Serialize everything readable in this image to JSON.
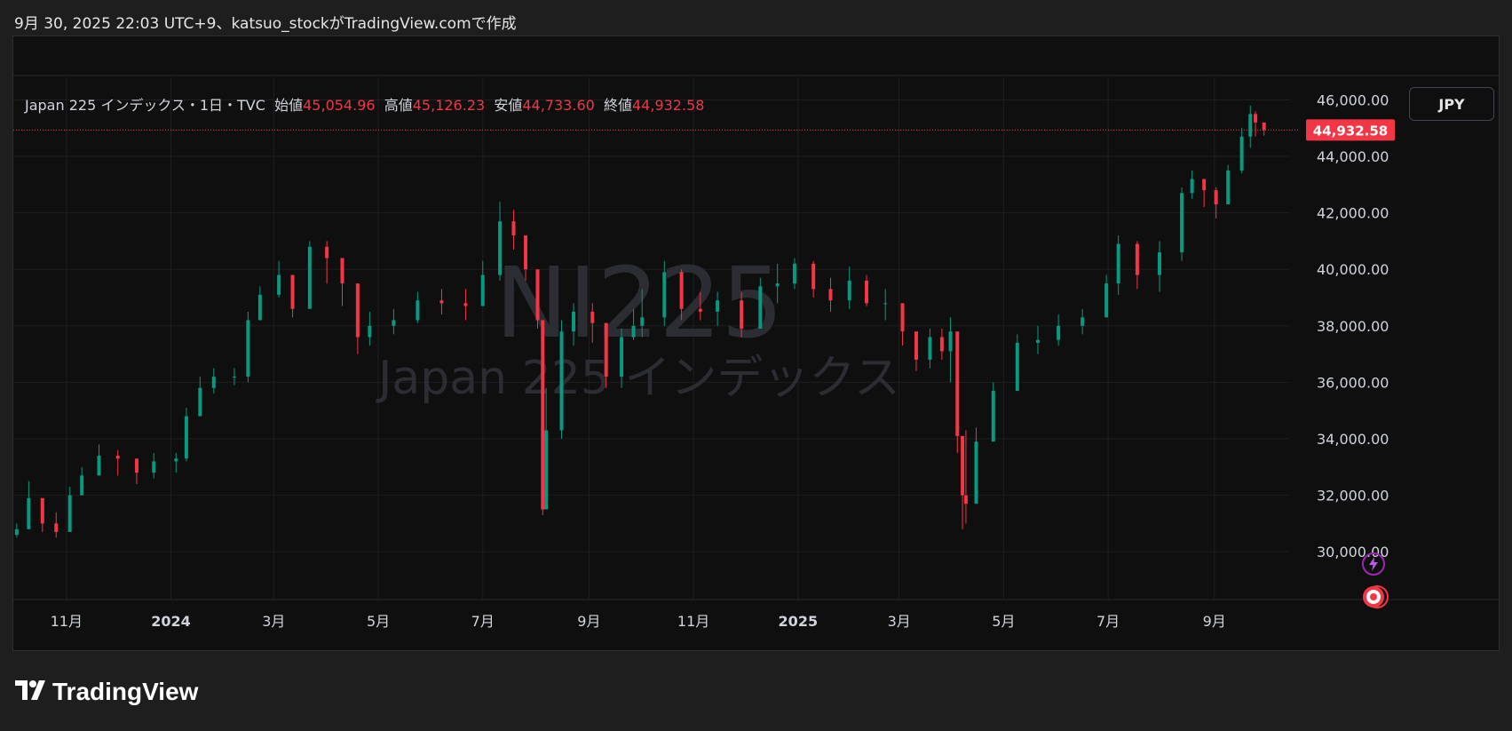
{
  "header": {
    "text": "9月 30, 2025 22:03 UTC+9、katsuo_stockがTradingView.comで作成"
  },
  "legend": {
    "symbol": "Japan 225 インデックス・1日・TVC",
    "open_label": "始値",
    "open_value": "45,054.96",
    "high_label": "高値",
    "high_value": "45,126.23",
    "low_label": "安値",
    "low_value": "44,733.60",
    "close_label": "終値",
    "close_value": "44,932.58"
  },
  "watermark": {
    "symbol": "NI225",
    "name": "Japan 225 インデックス"
  },
  "currency_button": "JPY",
  "last_price_badge": "44,932.58",
  "brand": {
    "logo_text": "TradingView"
  },
  "colors": {
    "up": "#089981",
    "down": "#f23645",
    "background": "#0f0f0f",
    "grid": "#1f1f1f",
    "accent_purple": "#9c27b0"
  },
  "chart_data": {
    "type": "line",
    "chart_style": "candlestick",
    "xlabel": "",
    "ylabel": "",
    "ylim": [
      29000,
      46800
    ],
    "grid": true,
    "y_ticks": [
      "30,000.00",
      "32,000.00",
      "34,000.00",
      "36,000.00",
      "38,000.00",
      "40,000.00",
      "42,000.00",
      "44,000.00",
      "46,000.00"
    ],
    "y_tick_values": [
      30000,
      32000,
      34000,
      36000,
      38000,
      40000,
      42000,
      44000,
      46000
    ],
    "x_ticks": [
      "11月",
      "2024",
      "3月",
      "5月",
      "7月",
      "9月",
      "11月",
      "2025",
      "3月",
      "5月",
      "7月",
      "9月"
    ],
    "x_tick_dates": [
      "2023-11-01",
      "2024-01-01",
      "2024-03-01",
      "2024-05-01",
      "2024-07-01",
      "2024-09-01",
      "2024-11-01",
      "2025-01-01",
      "2025-03-01",
      "2025-05-01",
      "2025-07-01",
      "2025-09-01"
    ],
    "last_price": 44932.58,
    "series": [
      {
        "dates": [
          "2023-10-03",
          "2023-10-10",
          "2023-10-18",
          "2023-10-26",
          "2023-11-03",
          "2023-11-10",
          "2023-11-20",
          "2023-12-01",
          "2023-12-12",
          "2023-12-22",
          "2024-01-04",
          "2024-01-10",
          "2024-01-18",
          "2024-01-26",
          "2024-02-07",
          "2024-02-15",
          "2024-02-22",
          "2024-03-04",
          "2024-03-12",
          "2024-03-22",
          "2024-04-01",
          "2024-04-10",
          "2024-04-19",
          "2024-04-26",
          "2024-05-10",
          "2024-05-24",
          "2024-06-07",
          "2024-06-21",
          "2024-07-01",
          "2024-07-11",
          "2024-07-19",
          "2024-07-26",
          "2024-08-02",
          "2024-08-05",
          "2024-08-07",
          "2024-08-16",
          "2024-08-23",
          "2024-09-03",
          "2024-09-11",
          "2024-09-20",
          "2024-09-27",
          "2024-10-02",
          "2024-10-15",
          "2024-10-25",
          "2024-11-05",
          "2024-11-15",
          "2024-11-29",
          "2024-12-10",
          "2024-12-20",
          "2024-12-30",
          "2025-01-10",
          "2025-01-20",
          "2025-01-31",
          "2025-02-10",
          "2025-02-21",
          "2025-03-03",
          "2025-03-11",
          "2025-03-19",
          "2025-03-26",
          "2025-03-31",
          "2025-04-04",
          "2025-04-07",
          "2025-04-09",
          "2025-04-15",
          "2025-04-25",
          "2025-05-09",
          "2025-05-21",
          "2025-06-02",
          "2025-06-16",
          "2025-06-30",
          "2025-07-07",
          "2025-07-18",
          "2025-07-31",
          "2025-08-13",
          "2025-08-19",
          "2025-08-26",
          "2025-09-02",
          "2025-09-09",
          "2025-09-17",
          "2025-09-22",
          "2025-09-25",
          "2025-09-30"
        ],
        "close": [
          30800,
          31900,
          31000,
          30700,
          32000,
          32700,
          33400,
          33300,
          32800,
          33200,
          33300,
          34800,
          35800,
          36200,
          36200,
          38200,
          39100,
          39800,
          38600,
          40800,
          40400,
          39500,
          37600,
          38000,
          38200,
          38900,
          38800,
          38700,
          39800,
          41700,
          41200,
          40000,
          38200,
          31500,
          34300,
          37800,
          38500,
          38100,
          36200,
          37600,
          38000,
          38300,
          39900,
          38600,
          38500,
          38900,
          37900,
          39400,
          39500,
          40200,
          39300,
          38900,
          39600,
          38800,
          38800,
          37800,
          36800,
          37600,
          37100,
          37800,
          34100,
          32000,
          31700,
          33900,
          35700,
          37400,
          37500,
          38000,
          38300,
          39500,
          40900,
          39800,
          40600,
          42700,
          43200,
          42800,
          42300,
          43500,
          44700,
          45500,
          45200,
          44933
        ],
        "high": [
          31000,
          32500,
          31600,
          31400,
          32300,
          33000,
          33800,
          33600,
          33200,
          33500,
          33500,
          35100,
          36200,
          36500,
          36500,
          38500,
          39400,
          40300,
          39400,
          41000,
          41000,
          40300,
          38300,
          38500,
          38600,
          39200,
          39300,
          39300,
          40300,
          42400,
          42100,
          41000,
          39300,
          36000,
          35800,
          38200,
          38800,
          38800,
          37500,
          37900,
          38600,
          39300,
          40300,
          40000,
          39200,
          39200,
          39200,
          39700,
          40200,
          40400,
          40300,
          39700,
          40100,
          39800,
          39300,
          38400,
          37600,
          37900,
          37900,
          38300,
          36000,
          33500,
          34300,
          34400,
          36000,
          37700,
          38000,
          38400,
          38600,
          39800,
          41200,
          41000,
          41000,
          42900,
          43500,
          43200,
          42900,
          43700,
          45000,
          45800,
          45600,
          45127
        ],
        "low": [
          30500,
          30900,
          30700,
          30500,
          31100,
          32000,
          33000,
          32700,
          32400,
          32600,
          32800,
          33200,
          35000,
          35600,
          35900,
          36000,
          38300,
          39000,
          38300,
          39500,
          39500,
          38700,
          37000,
          37300,
          37700,
          38100,
          38400,
          38200,
          39200,
          39600,
          40700,
          39600,
          37900,
          31300,
          32000,
          34000,
          37300,
          37400,
          35800,
          35800,
          37500,
          37600,
          38000,
          38200,
          38200,
          38000,
          37600,
          38500,
          38800,
          39300,
          39000,
          38500,
          38600,
          38700,
          38200,
          37300,
          36400,
          36500,
          36800,
          36000,
          33500,
          30800,
          31000,
          32200,
          35000,
          36300,
          37000,
          37300,
          37700,
          38300,
          39100,
          39300,
          39200,
          40300,
          42500,
          42200,
          41800,
          42300,
          43400,
          44300,
          44700,
          44733
        ],
        "name": ""
      }
    ]
  }
}
